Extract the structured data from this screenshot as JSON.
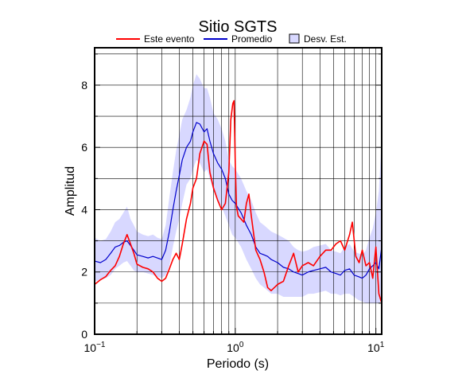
{
  "chart_data": {
    "type": "line",
    "title": "Sitio SGTS",
    "xlabel": "Periodo (s)",
    "ylabel": "Amplitud",
    "x_scale": "log",
    "xlim": [
      0.1,
      11
    ],
    "ylim": [
      0,
      9.2
    ],
    "grid": true,
    "legend_position": "top",
    "x_tick_labels": [
      {
        "base": "10",
        "exp": "−1",
        "value": 0.1
      },
      {
        "base": "10",
        "exp": "0",
        "value": 1
      },
      {
        "base": "10",
        "exp": "1",
        "value": 10
      }
    ],
    "x_tick_label_values": [
      "10−1",
      "100",
      "101"
    ],
    "y_ticks": [
      0,
      2,
      4,
      6,
      8
    ],
    "y_tick_labels": [
      "0",
      "2",
      "4",
      "6",
      "8"
    ],
    "legend": [
      {
        "label": "Este evento",
        "kind": "line",
        "color": "#ff0000"
      },
      {
        "label": "Promedio",
        "kind": "line",
        "color": "#0000cc"
      },
      {
        "label": "Desv. Est.",
        "kind": "area",
        "color": "#d8d8ff"
      }
    ],
    "series": [
      {
        "name": "Este evento",
        "color": "#ff0000",
        "x": [
          0.1,
          0.11,
          0.12,
          0.13,
          0.14,
          0.15,
          0.16,
          0.17,
          0.18,
          0.19,
          0.2,
          0.22,
          0.24,
          0.26,
          0.28,
          0.3,
          0.32,
          0.34,
          0.36,
          0.38,
          0.4,
          0.42,
          0.45,
          0.48,
          0.5,
          0.53,
          0.56,
          0.6,
          0.63,
          0.66,
          0.7,
          0.75,
          0.8,
          0.85,
          0.9,
          0.93,
          0.96,
          0.98,
          1.0,
          1.02,
          1.05,
          1.1,
          1.15,
          1.2,
          1.25,
          1.3,
          1.4,
          1.5,
          1.6,
          1.7,
          1.8,
          2.0,
          2.2,
          2.4,
          2.6,
          2.8,
          3.0,
          3.3,
          3.6,
          4.0,
          4.4,
          4.8,
          5.2,
          5.6,
          6.0,
          6.5,
          6.8,
          7.2,
          7.6,
          8.0,
          8.5,
          9.0,
          9.5,
          10.0,
          10.5,
          11.0
        ],
        "values": [
          1.6,
          1.75,
          1.85,
          2.05,
          2.2,
          2.5,
          2.9,
          3.2,
          2.9,
          2.6,
          2.25,
          2.15,
          2.1,
          2.0,
          1.8,
          1.7,
          1.8,
          2.1,
          2.4,
          2.6,
          2.4,
          2.9,
          3.7,
          4.2,
          4.7,
          5.0,
          5.8,
          6.2,
          6.1,
          5.2,
          4.7,
          4.3,
          4.0,
          4.2,
          5.2,
          6.9,
          7.4,
          7.5,
          5.5,
          4.1,
          3.8,
          3.7,
          3.6,
          4.2,
          4.5,
          3.8,
          2.7,
          2.4,
          2.0,
          1.5,
          1.4,
          1.6,
          1.7,
          2.2,
          2.6,
          2.0,
          2.2,
          2.3,
          2.2,
          2.5,
          2.7,
          2.7,
          2.9,
          3.0,
          2.7,
          3.2,
          3.6,
          2.5,
          2.3,
          2.7,
          2.2,
          2.3,
          1.8,
          2.8,
          1.3,
          1.0
        ]
      },
      {
        "name": "Promedio",
        "color": "#0000cc",
        "x": [
          0.1,
          0.11,
          0.12,
          0.13,
          0.14,
          0.15,
          0.16,
          0.17,
          0.18,
          0.19,
          0.2,
          0.22,
          0.24,
          0.26,
          0.28,
          0.3,
          0.32,
          0.34,
          0.36,
          0.38,
          0.4,
          0.42,
          0.45,
          0.48,
          0.5,
          0.53,
          0.56,
          0.6,
          0.63,
          0.66,
          0.7,
          0.75,
          0.8,
          0.85,
          0.9,
          0.95,
          1.0,
          1.1,
          1.2,
          1.3,
          1.4,
          1.5,
          1.6,
          1.7,
          1.8,
          2.0,
          2.2,
          2.4,
          2.6,
          2.8,
          3.0,
          3.3,
          3.6,
          4.0,
          4.4,
          4.8,
          5.2,
          5.6,
          6.0,
          6.5,
          7.0,
          7.5,
          8.0,
          8.5,
          9.0,
          9.5,
          10.0,
          10.5,
          11.0
        ],
        "values": [
          2.35,
          2.3,
          2.4,
          2.6,
          2.8,
          2.85,
          2.95,
          3.0,
          2.85,
          2.7,
          2.55,
          2.5,
          2.45,
          2.5,
          2.45,
          2.4,
          2.7,
          3.3,
          4.0,
          4.6,
          5.1,
          5.6,
          6.0,
          6.2,
          6.5,
          6.8,
          6.75,
          6.5,
          6.6,
          6.2,
          5.8,
          5.5,
          5.3,
          5.0,
          4.5,
          4.3,
          4.2,
          3.9,
          3.5,
          3.2,
          2.8,
          2.6,
          2.55,
          2.5,
          2.4,
          2.3,
          2.15,
          2.1,
          2.0,
          1.95,
          1.9,
          2.0,
          2.05,
          2.1,
          2.15,
          2.0,
          1.95,
          1.9,
          2.05,
          2.1,
          1.9,
          1.85,
          1.8,
          1.9,
          2.1,
          2.2,
          2.3,
          2.1,
          2.8
        ]
      },
      {
        "name": "Desv. Est.",
        "color": "#d8d8ff",
        "x": [
          0.1,
          0.11,
          0.12,
          0.13,
          0.14,
          0.15,
          0.16,
          0.17,
          0.18,
          0.19,
          0.2,
          0.22,
          0.24,
          0.26,
          0.28,
          0.3,
          0.32,
          0.34,
          0.36,
          0.38,
          0.4,
          0.42,
          0.45,
          0.48,
          0.5,
          0.53,
          0.56,
          0.6,
          0.63,
          0.66,
          0.7,
          0.75,
          0.8,
          0.85,
          0.9,
          0.95,
          1.0,
          1.1,
          1.2,
          1.3,
          1.4,
          1.5,
          1.6,
          1.7,
          1.8,
          2.0,
          2.2,
          2.4,
          2.6,
          2.8,
          3.0,
          3.3,
          3.6,
          4.0,
          4.4,
          4.8,
          5.2,
          5.6,
          6.0,
          6.5,
          7.0,
          7.5,
          8.0,
          8.5,
          9.0,
          9.5,
          10.0,
          10.5,
          11.0
        ],
        "lower": [
          1.7,
          1.75,
          1.8,
          1.9,
          2.1,
          2.2,
          2.3,
          2.35,
          2.2,
          2.05,
          2.0,
          2.0,
          1.95,
          1.9,
          1.85,
          1.8,
          1.9,
          2.2,
          2.8,
          3.3,
          3.7,
          4.2,
          4.8,
          5.0,
          5.3,
          5.6,
          5.5,
          5.2,
          5.3,
          5.0,
          4.6,
          4.3,
          4.1,
          3.8,
          3.5,
          3.2,
          3.1,
          2.8,
          2.4,
          2.1,
          1.8,
          1.6,
          1.5,
          1.4,
          1.3,
          1.3,
          1.2,
          1.2,
          1.2,
          1.2,
          1.2,
          1.3,
          1.3,
          1.35,
          1.4,
          1.3,
          1.3,
          1.25,
          1.3,
          1.3,
          1.2,
          1.1,
          1.05,
          1.0,
          1.0,
          1.0,
          1.0,
          1.0,
          1.1
        ],
        "upper": [
          3.1,
          3.0,
          3.05,
          3.3,
          3.6,
          3.7,
          3.9,
          4.1,
          3.7,
          3.5,
          3.3,
          3.2,
          3.15,
          3.2,
          3.1,
          3.05,
          3.5,
          4.4,
          5.2,
          5.9,
          6.4,
          6.9,
          7.2,
          7.6,
          8.0,
          8.35,
          8.2,
          7.9,
          7.9,
          7.6,
          7.1,
          6.9,
          6.6,
          6.2,
          5.6,
          5.4,
          5.3,
          5.0,
          4.6,
          4.3,
          3.9,
          3.6,
          3.5,
          3.4,
          3.3,
          3.2,
          3.1,
          3.0,
          2.8,
          2.7,
          2.65,
          2.7,
          2.8,
          2.85,
          2.9,
          2.7,
          2.65,
          2.6,
          2.8,
          2.9,
          2.65,
          2.6,
          2.55,
          2.7,
          3.1,
          3.4,
          3.9,
          4.6,
          6.3
        ]
      }
    ]
  }
}
